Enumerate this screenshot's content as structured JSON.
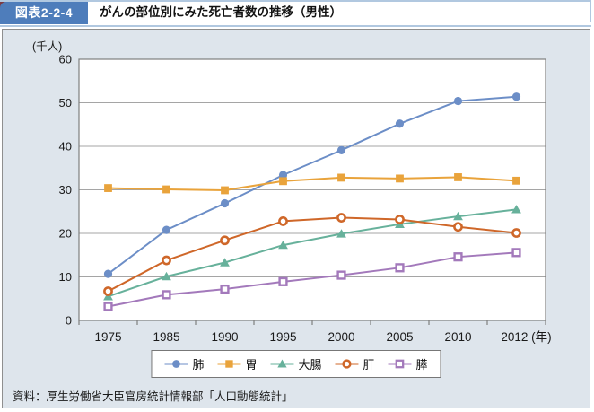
{
  "header": {
    "badge": "図表2-2-4",
    "title": "がんの部位別にみた死亡者数の推移（男性）"
  },
  "source": "資料：厚生労働省大臣官房統計情報部「人口動態統計」",
  "colors": {
    "badge_blue": "#4e7dbb",
    "header_line_blue": "#b1c8e0",
    "corner_red": "#7c3a43",
    "panel_bg": "#dee5ec",
    "panel_border": "#8f8f8f",
    "plot_bg": "#ffffff",
    "plot_border": "#7f7f7f",
    "gridline": "#a5a5a5"
  },
  "chart_data": {
    "type": "line",
    "title": "がんの部位別にみた死亡者数の推移（男性）",
    "unit_label": "(千人)",
    "xlabel_suffix": "(年)",
    "categories": [
      "1975",
      "1985",
      "1990",
      "1995",
      "2000",
      "2005",
      "2010",
      "2012"
    ],
    "y_ticks": [
      0,
      10,
      20,
      30,
      40,
      50,
      60
    ],
    "ylim": [
      0,
      60
    ],
    "grid": true,
    "legend_position": "bottom-center",
    "series": [
      {
        "name": "肺",
        "marker": "circle",
        "fill": "solid",
        "color": "#6c8ec7",
        "values": [
          10.7,
          20.8,
          26.9,
          33.4,
          39.1,
          45.2,
          50.4,
          51.4
        ]
      },
      {
        "name": "胃",
        "marker": "square",
        "fill": "solid",
        "color": "#e9a33b",
        "values": [
          30.4,
          30.1,
          29.9,
          32.0,
          32.8,
          32.6,
          32.9,
          32.1
        ]
      },
      {
        "name": "大腸",
        "marker": "triangle",
        "fill": "solid",
        "color": "#67b19b",
        "values": [
          5.5,
          10.1,
          13.3,
          17.3,
          19.9,
          22.1,
          23.9,
          25.5
        ]
      },
      {
        "name": "肝",
        "marker": "circle",
        "fill": "open",
        "color": "#cf6729",
        "values": [
          6.7,
          13.8,
          18.4,
          22.8,
          23.6,
          23.2,
          21.5,
          20.1
        ]
      },
      {
        "name": "膵",
        "marker": "square",
        "fill": "open",
        "color": "#a379bb",
        "values": [
          3.2,
          5.9,
          7.2,
          8.9,
          10.4,
          12.1,
          14.6,
          15.6
        ]
      }
    ]
  }
}
